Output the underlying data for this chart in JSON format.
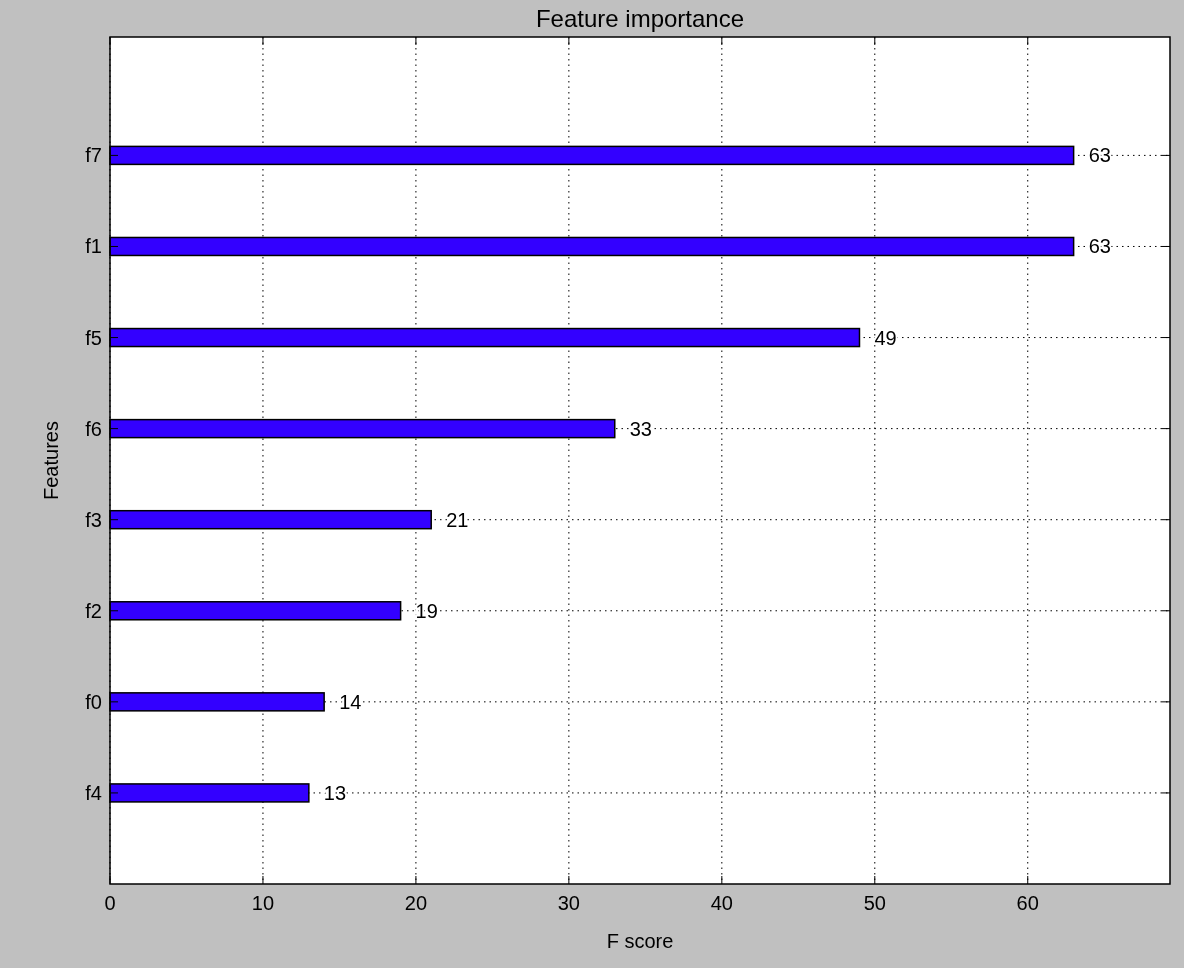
{
  "chart_data": {
    "type": "bar",
    "orientation": "horizontal",
    "title": "Feature importance",
    "xlabel": "F score",
    "ylabel": "Features",
    "categories": [
      "f7",
      "f1",
      "f5",
      "f6",
      "f3",
      "f2",
      "f0",
      "f4"
    ],
    "values": [
      63,
      63,
      49,
      33,
      21,
      19,
      14,
      13
    ],
    "color": "#3300ff",
    "data_labels": true,
    "grid": true,
    "xlim": [
      0,
      69.3
    ],
    "xticks": [
      0,
      10,
      20,
      30,
      40,
      50,
      60
    ]
  }
}
